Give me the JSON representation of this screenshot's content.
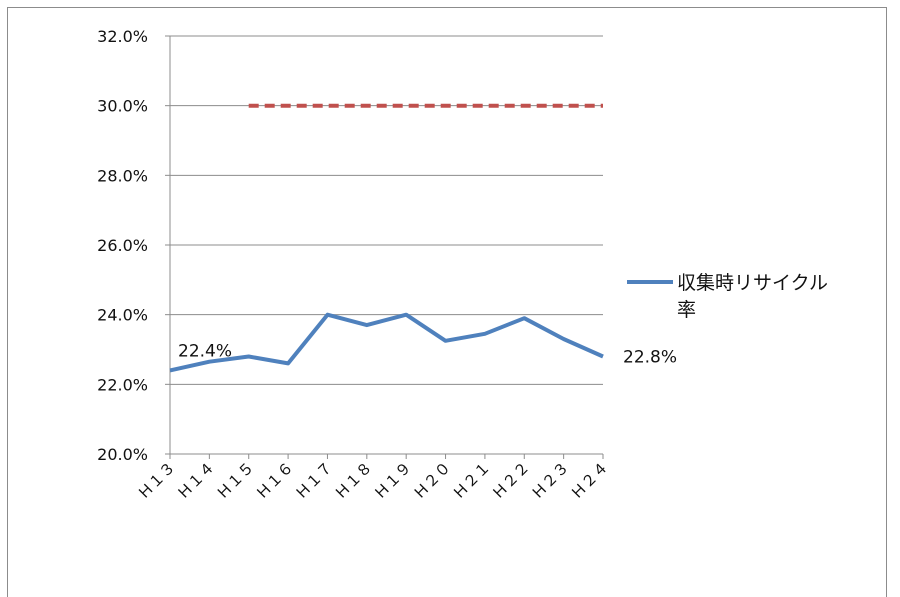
{
  "chart_data": {
    "type": "line",
    "title": "",
    "xlabel": "",
    "ylabel": "",
    "categories": [
      "Ｈ１３",
      "Ｈ１４",
      "Ｈ１５",
      "Ｈ１６",
      "Ｈ１７",
      "Ｈ１８",
      "Ｈ１９",
      "Ｈ２０",
      "Ｈ２１",
      "Ｈ２２",
      "Ｈ２３",
      "Ｈ２４"
    ],
    "ylim": [
      20.0,
      32.0
    ],
    "yticks": [
      "20.0%",
      "22.0%",
      "24.0%",
      "26.0%",
      "28.0%",
      "30.0%",
      "32.0%"
    ],
    "grid": true,
    "series": [
      {
        "name": "収集時リサイクル率",
        "color": "#4f81bd",
        "values": [
          22.4,
          22.65,
          22.8,
          22.6,
          24.0,
          23.7,
          24.0,
          23.25,
          23.45,
          23.9,
          23.3,
          22.8
        ]
      },
      {
        "name": "",
        "color": "#c0504d",
        "style": "dashed",
        "start_index": 2,
        "values": [
          null,
          null,
          30.0,
          30.0,
          30.0,
          30.0,
          30.0,
          30.0,
          30.0,
          30.0,
          30.0,
          30.0
        ]
      }
    ],
    "data_labels": [
      {
        "text": "22.4%",
        "index": 0
      },
      {
        "text": "22.8%",
        "index": 11
      }
    ],
    "legend": {
      "position": "right",
      "lines": [
        "収集時リサイクル",
        "率"
      ]
    }
  }
}
